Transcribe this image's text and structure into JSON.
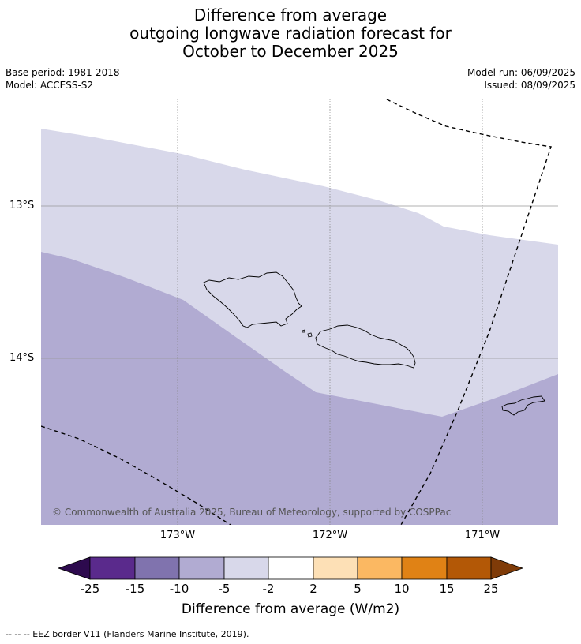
{
  "title": {
    "line1": "Difference from average",
    "line2": "outgoing longwave radiation forecast for",
    "line3": "October to December 2025"
  },
  "meta": {
    "base_period": "Base period: 1981-2018",
    "model": "Model: ACCESS-S2",
    "model_run": "Model run: 06/09/2025",
    "issued": "Issued: 08/09/2025"
  },
  "map": {
    "lat_labels": [
      "13°S",
      "14°S"
    ],
    "lon_labels": [
      "173°W",
      "172°W",
      "171°W"
    ],
    "copyright": "© Commonwealth of Australia 2025, Bureau of Meteorology, supported by COSPPac",
    "region_colors": {
      "light": "#d8d8ea",
      "medium": "#b1abd2"
    }
  },
  "colorbar": {
    "ticks": [
      "-25",
      "-15",
      "-10",
      "-5",
      "-2",
      "2",
      "5",
      "10",
      "15",
      "25"
    ],
    "colors": [
      "#2d0a4e",
      "#5a2a8c",
      "#8073ae",
      "#b1abd2",
      "#d8d8ea",
      "#ffffff",
      "#fde0b6",
      "#fbb862",
      "#e08215",
      "#b35806",
      "#7f3b08"
    ],
    "label": "Difference from average (W/m2)"
  },
  "footer": "--  --  -- EEZ border V11 (Flanders Marine Institute, 2019)."
}
